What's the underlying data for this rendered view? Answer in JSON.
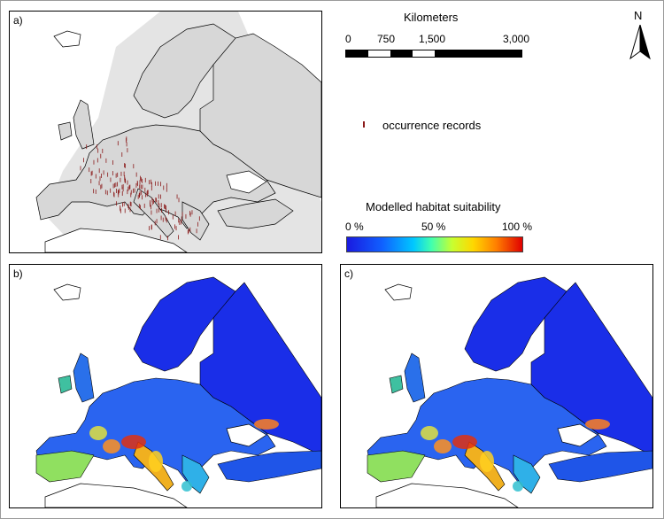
{
  "panels": {
    "a": {
      "label": "a)"
    },
    "b": {
      "label": "b)"
    },
    "c": {
      "label": "c)"
    }
  },
  "scale": {
    "title": "Kilometers",
    "ticks": [
      "0",
      "750",
      "1,500",
      "3,000"
    ]
  },
  "north_arrow": {
    "label": "N"
  },
  "occurrence_legend": {
    "label": "occurrence records",
    "color": "#8b1a1a"
  },
  "suitability_legend": {
    "title": "Modelled habitat suitability",
    "ticks": [
      "0 %",
      "50 %",
      "100 %"
    ],
    "colors": [
      "#1a1ae0",
      "#00c8ff",
      "#c8ff30",
      "#ffd700",
      "#e00000"
    ]
  },
  "colors": {
    "land": "#d9d9d9",
    "extent": "#e2e2e2",
    "low_suitability": "#1a2ee8",
    "border": "#000000"
  }
}
